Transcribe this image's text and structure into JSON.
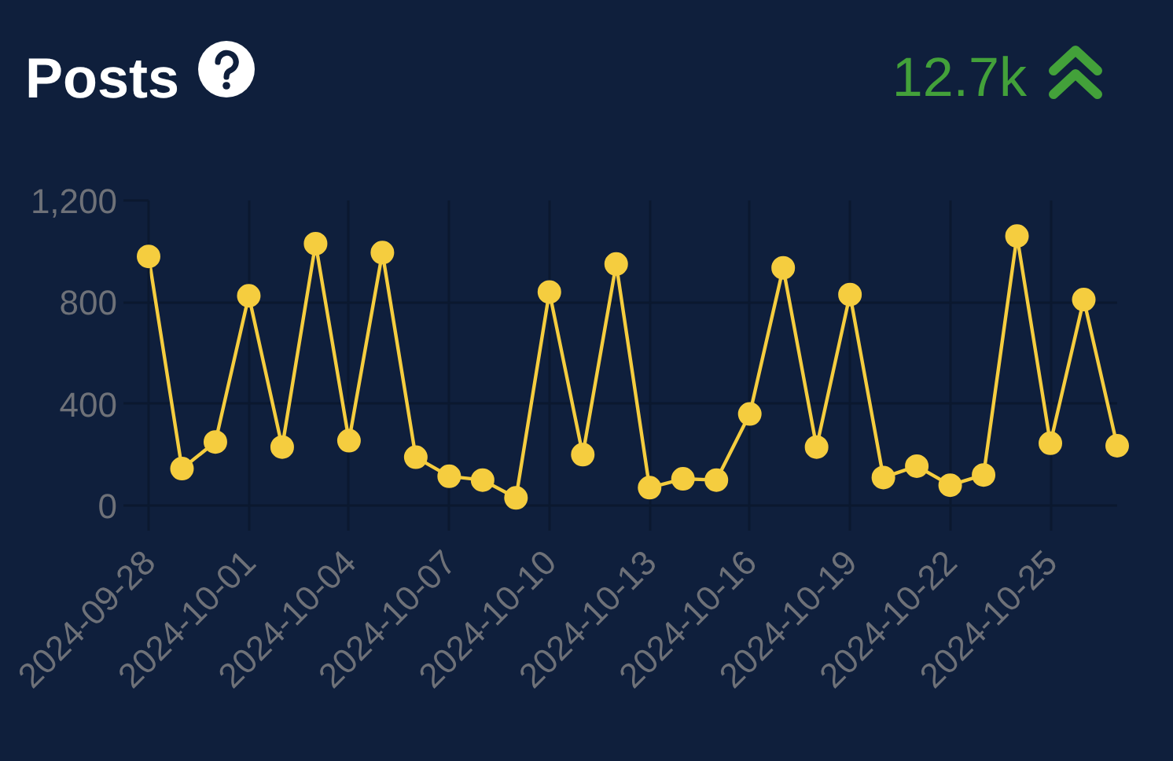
{
  "chart_data": {
    "type": "line",
    "title": "Posts",
    "annotations": [
      "12.7k"
    ],
    "x": [
      "2024-09-28",
      "2024-09-29",
      "2024-09-30",
      "2024-10-01",
      "2024-10-02",
      "2024-10-03",
      "2024-10-04",
      "2024-10-05",
      "2024-10-06",
      "2024-10-07",
      "2024-10-08",
      "2024-10-09",
      "2024-10-10",
      "2024-10-11",
      "2024-10-12",
      "2024-10-13",
      "2024-10-14",
      "2024-10-15",
      "2024-10-16",
      "2024-10-17",
      "2024-10-18",
      "2024-10-19",
      "2024-10-20",
      "2024-10-21",
      "2024-10-22",
      "2024-10-23",
      "2024-10-24",
      "2024-10-25",
      "2024-10-26",
      "2024-10-27"
    ],
    "series": [
      {
        "color": "#f5cd3f",
        "values": [
          980,
          145,
          250,
          825,
          230,
          1030,
          255,
          995,
          190,
          115,
          100,
          30,
          840,
          200,
          950,
          70,
          105,
          100,
          360,
          935,
          230,
          830,
          110,
          155,
          80,
          120,
          1060,
          245,
          810,
          235
        ]
      }
    ],
    "xlim": [
      "2024-09-28",
      "2024-10-27"
    ],
    "xticks": [
      "2024-09-28",
      "2024-10-01",
      "2024-10-04",
      "2024-10-07",
      "2024-10-10",
      "2024-10-13",
      "2024-10-16",
      "2024-10-19",
      "2024-10-22",
      "2024-10-25"
    ],
    "ylim": [
      0,
      1200
    ],
    "yticks": [
      0,
      400,
      800,
      {
        "value": 1200,
        "label": "1,200"
      }
    ],
    "grid": true,
    "marker": "circle",
    "line_style": "solid"
  }
}
